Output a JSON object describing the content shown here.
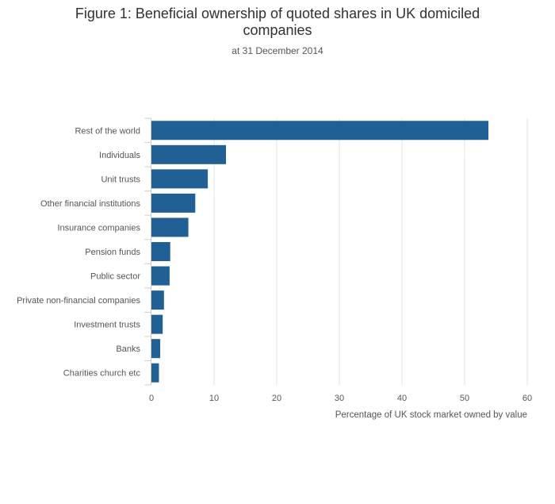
{
  "chart_data": {
    "type": "bar",
    "orientation": "horizontal",
    "title": "Figure 1: Beneficial ownership of quoted shares in UK domiciled companies",
    "subtitle": "at 31 December 2014",
    "xlabel": "Percentage of UK stock market owned by value",
    "ylabel": "",
    "xlim": [
      0,
      60
    ],
    "xticks": [
      0,
      10,
      20,
      30,
      40,
      50,
      60
    ],
    "grid": true,
    "bar_color": "#206095",
    "categories": [
      "Rest of the world",
      "Individuals",
      "Unit trusts",
      "Other financial institutions",
      "Insurance companies",
      "Pension funds",
      "Public sector",
      "Private non-financial companies",
      "Investment trusts",
      "Banks",
      "Charities church etc"
    ],
    "values": [
      53.8,
      11.9,
      9.0,
      7.0,
      5.9,
      3.0,
      2.9,
      2.0,
      1.8,
      1.4,
      1.2
    ]
  }
}
